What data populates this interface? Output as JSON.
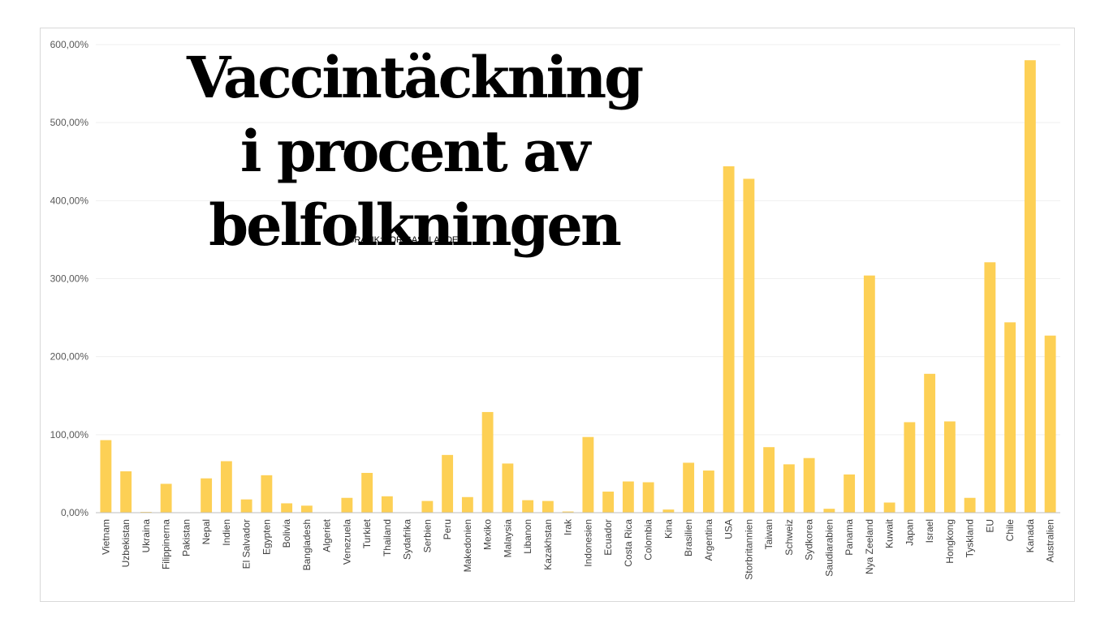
{
  "title_lines": [
    "Vaccintäckning",
    "i procent av",
    "belfolkningen"
  ],
  "credit": "GRAFIK: TOR GASSLANDER.",
  "colors": {
    "bar": "#fdd055",
    "grid": "#efefef",
    "axis": "#bfbfbf"
  },
  "chart_data": {
    "type": "bar",
    "title": "Vaccintäckning i procent av belfolkningen",
    "xlabel": "",
    "ylabel": "",
    "ylim": [
      0,
      600
    ],
    "yticks": [
      0,
      100,
      200,
      300,
      400,
      500,
      600
    ],
    "ytick_labels": [
      "0,00%",
      "100,00%",
      "200,00%",
      "300,00%",
      "400,00%",
      "500,00%",
      "600,00%"
    ],
    "grid": true,
    "legend": "none",
    "categories": [
      "Vietnam",
      "Uzbekistan",
      "Ukraina",
      "Filippinerna",
      "Pakistan",
      "Nepal",
      "Indien",
      "El Salvador",
      "Egypten",
      "Bolivia",
      "Bangladesh",
      "Algeriet",
      "Venezuela",
      "Turkiet",
      "Thailand",
      "Sydafrika",
      "Serbien",
      "Peru",
      "Makedonien",
      "Mexiko",
      "Malaysia",
      "Libanon",
      "Kazakhstan",
      "Irak",
      "Indonesien",
      "Ecuador",
      "Costa Rica",
      "Colombia",
      "Kina",
      "Brasilien",
      "Argentina",
      "USA",
      "Storbritannien",
      "Taiwan",
      "Schweiz",
      "Sydkorea",
      "Saudiarabien",
      "Panama",
      "Nya Zeeland",
      "Kuwait",
      "Japan",
      "Israel",
      "Hongkong",
      "Tyskland",
      "EU",
      "Chile",
      "Kanada",
      "Australien"
    ],
    "values": [
      93,
      53,
      1,
      37,
      0.5,
      44,
      66,
      17,
      48,
      12,
      9,
      0.5,
      19,
      51,
      21,
      0.5,
      15,
      74,
      20,
      129,
      63,
      16,
      15,
      1.5,
      97,
      27,
      40,
      39,
      4,
      64,
      54,
      444,
      428,
      84,
      62,
      70,
      5,
      49,
      304,
      13,
      116,
      178,
      117,
      19,
      321,
      244,
      580,
      227
    ]
  }
}
